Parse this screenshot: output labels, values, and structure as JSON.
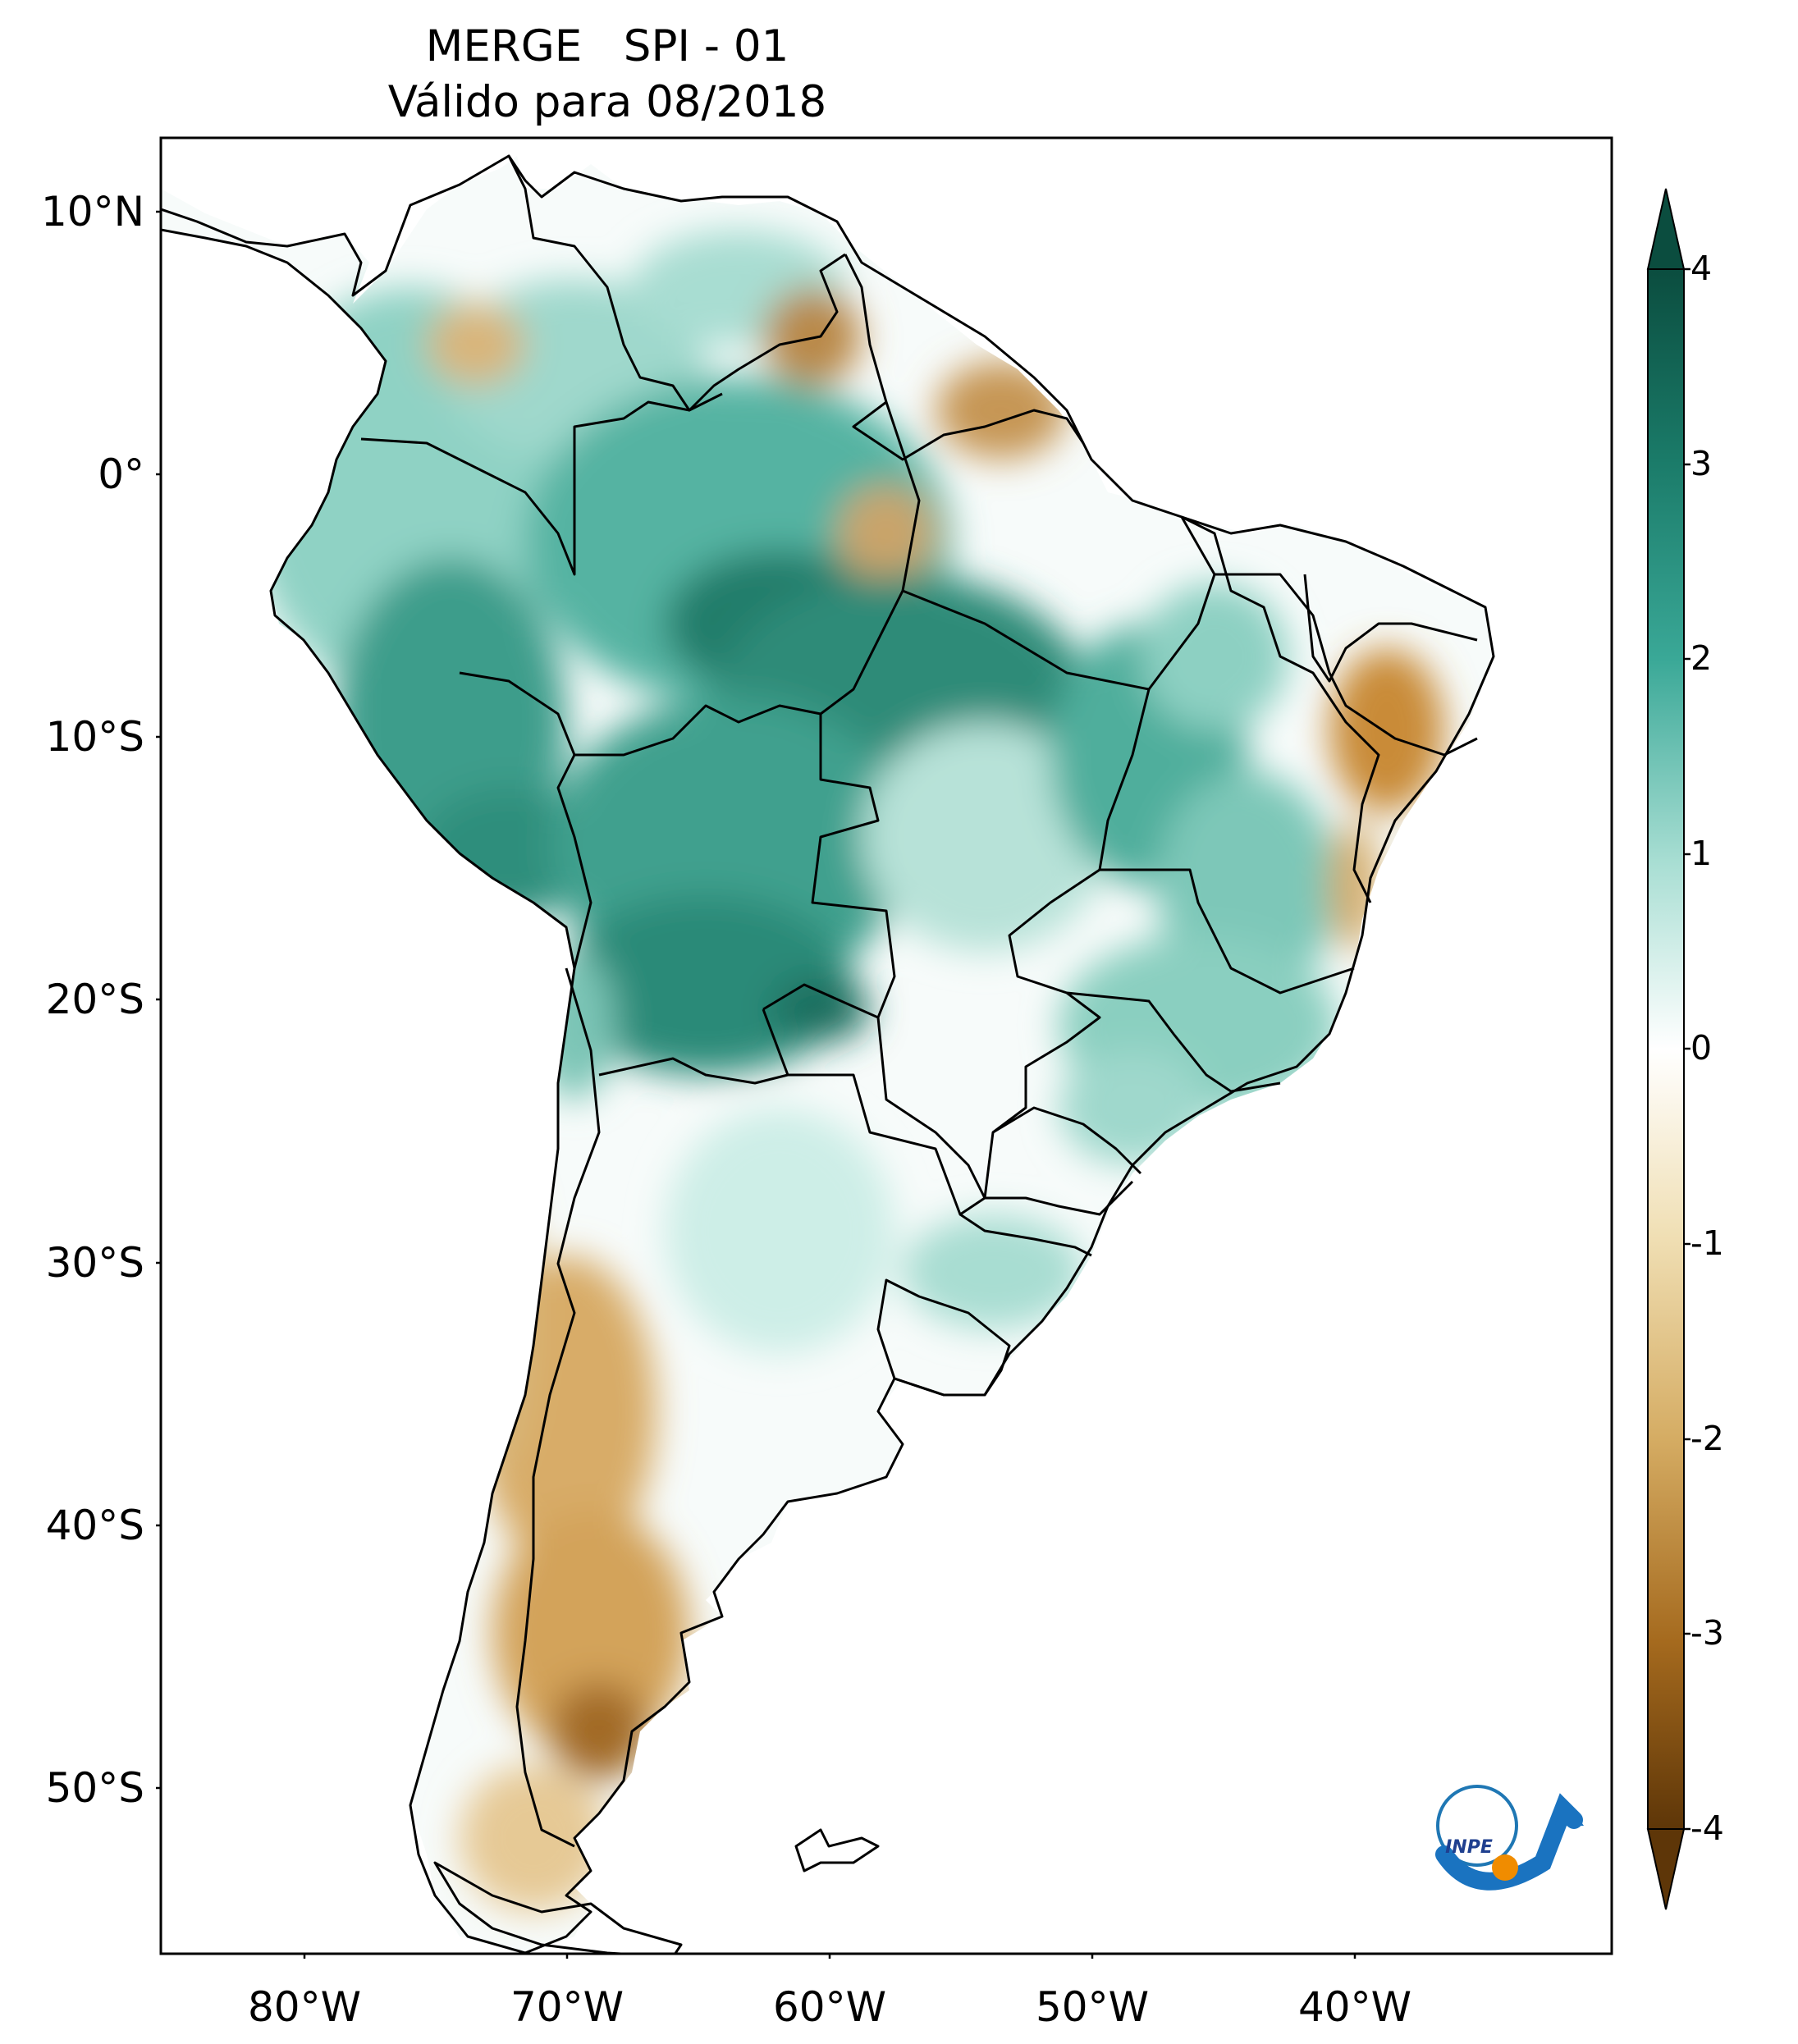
{
  "title": {
    "line1": "MERGE   SPI - 01",
    "line2": "Válido para 08/2018"
  },
  "map": {
    "region": "South America",
    "variable": "SPI - 01",
    "lat_ticks": [
      "10°N",
      "0°",
      "10°S",
      "20°S",
      "30°S",
      "40°S",
      "50°S"
    ],
    "lon_ticks": [
      "80°W",
      "70°W",
      "60°W",
      "50°W",
      "40°W"
    ]
  },
  "colorbar": {
    "ticks": [
      "4",
      "3",
      "2",
      "1",
      "0",
      "-1",
      "-2",
      "-3",
      "-4"
    ],
    "colors": {
      "wet_max": "#0b4d3f",
      "wet_mid": "#2a9d8f",
      "wet_low": "#a8ded3",
      "neutral": "#ffffff",
      "dry_low": "#f0dfb4",
      "dry_mid": "#c8923e",
      "dry_max": "#5e3608"
    }
  },
  "logo": {
    "text": "INPE"
  }
}
